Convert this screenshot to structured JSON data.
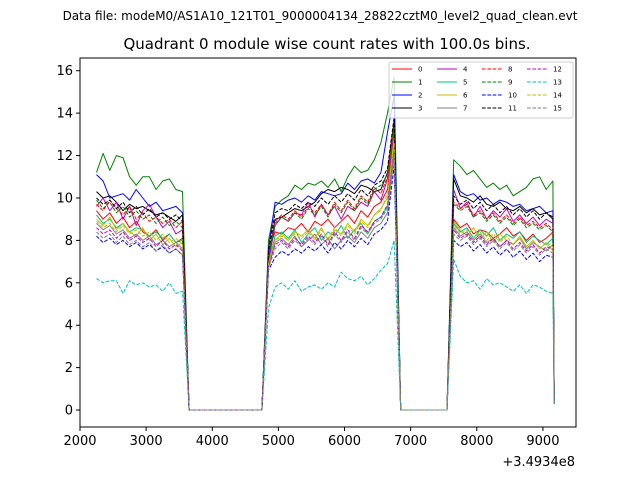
{
  "chart_data": {
    "type": "line",
    "suptitle": "Data file: modeM0/AS1A10_121T01_9000004134_28822cztM0_level2_quad_clean.evt",
    "title": "Quadrant 0 module wise count rates with 100.0s bins.",
    "xlabel": "",
    "ylabel": "",
    "x_offset_label": "+3.4934e8",
    "xlim": [
      2000,
      9500
    ],
    "ylim": [
      -0.8,
      16.6
    ],
    "xticks": [
      2000,
      3000,
      4000,
      5000,
      6000,
      7000,
      8000,
      9000
    ],
    "xtick_labels": [
      "2000",
      "3000",
      "4000",
      "5000",
      "6000",
      "7000",
      "8000",
      "9000"
    ],
    "yticks": [
      0,
      2,
      4,
      6,
      8,
      10,
      12,
      14,
      16
    ],
    "ytick_labels": [
      "0",
      "2",
      "4",
      "6",
      "8",
      "10",
      "12",
      "14",
      "16"
    ],
    "legend_location": "upper right",
    "gaps": [
      {
        "x_start": 3650,
        "x_end": 4750,
        "value": 0
      },
      {
        "x_start": 6850,
        "x_end": 7550,
        "value": 0
      }
    ],
    "segments": [
      {
        "start": 2250,
        "end": 3550,
        "points": 14,
        "drop_to": 3650
      },
      {
        "start": 4850,
        "end": 6750,
        "points": 20,
        "rise_from": 4750,
        "drop_to": 6850
      },
      {
        "start": 7650,
        "end": 9150,
        "points": 16,
        "rise_from": 7550,
        "final_x": 9170
      }
    ],
    "series": [
      {
        "name": "0",
        "color": "#ff0000",
        "dash": "solid",
        "values": [
          9.4,
          9.0,
          9.3,
          8.8,
          9.1,
          8.6,
          8.9,
          8.4,
          8.2,
          8.5,
          8.0,
          8.3,
          7.9,
          8.1,
          7.5,
          8.4,
          8.3,
          8.6,
          8.5,
          8.8,
          8.4,
          8.9,
          8.7,
          9.0,
          8.6,
          8.9,
          9.2,
          8.8,
          9.4,
          9.1,
          9.6,
          9.8,
          10.4,
          13.2,
          9.0,
          8.6,
          8.8,
          8.3,
          8.5,
          8.4,
          8.1,
          8.3,
          8.6,
          8.2,
          8.4,
          8.0,
          8.3,
          7.9,
          8.1,
          8.4,
          0.4
        ]
      },
      {
        "name": "1",
        "color": "#008000",
        "dash": "solid",
        "values": [
          11.2,
          12.1,
          11.3,
          12.0,
          11.9,
          11.0,
          10.6,
          11.0,
          11.0,
          10.4,
          10.8,
          10.9,
          10.4,
          10.3,
          8.0,
          9.6,
          9.9,
          10.1,
          10.6,
          10.4,
          10.7,
          10.6,
          10.8,
          10.5,
          10.9,
          10.3,
          11.0,
          11.5,
          11.2,
          11.3,
          11.8,
          12.6,
          14.0,
          15.7,
          11.8,
          11.5,
          11.1,
          11.3,
          10.9,
          10.5,
          10.7,
          10.4,
          10.6,
          10.1,
          10.3,
          10.5,
          10.9,
          11.0,
          10.4,
          10.8,
          0.5
        ]
      },
      {
        "name": "2",
        "color": "#0000ff",
        "dash": "solid",
        "values": [
          11.1,
          10.8,
          10.0,
          10.1,
          10.2,
          9.9,
          10.4,
          10.0,
          9.6,
          9.8,
          9.4,
          9.5,
          9.6,
          9.3,
          7.6,
          9.8,
          9.7,
          9.9,
          10.0,
          9.8,
          10.1,
          9.9,
          10.3,
          10.2,
          10.1,
          10.2,
          10.7,
          10.4,
          10.8,
          10.9,
          10.7,
          11.2,
          13.1,
          14.8,
          11.1,
          10.3,
          10.1,
          10.2,
          9.9,
          10.0,
          9.7,
          9.9,
          9.8,
          9.6,
          9.7,
          9.4,
          9.5,
          9.6,
          9.3,
          9.4,
          0.4
        ]
      },
      {
        "name": "3",
        "color": "#000000",
        "dash": "solid",
        "values": [
          10.3,
          10.0,
          10.1,
          9.8,
          9.4,
          9.7,
          9.5,
          9.6,
          9.4,
          9.2,
          9.3,
          9.1,
          8.9,
          9.2,
          7.2,
          9.0,
          9.1,
          9.3,
          9.5,
          9.4,
          9.6,
          9.8,
          10.2,
          10.4,
          10.3,
          10.5,
          10.4,
          10.2,
          10.6,
          10.5,
          10.3,
          10.4,
          11.2,
          13.6,
          10.9,
          10.1,
          10.0,
          9.8,
          10.1,
          9.7,
          9.6,
          9.8,
          9.5,
          9.4,
          9.6,
          9.3,
          9.5,
          9.2,
          9.3,
          9.0,
          0.4
        ]
      },
      {
        "name": "4",
        "color": "#bf00bf",
        "dash": "solid",
        "values": [
          9.6,
          10.0,
          9.4,
          9.8,
          9.0,
          9.6,
          8.7,
          9.4,
          9.7,
          9.1,
          8.6,
          8.9,
          8.3,
          8.5,
          7.0,
          8.7,
          9.1,
          8.9,
          9.3,
          9.2,
          9.8,
          9.1,
          9.7,
          9.2,
          9.6,
          9.0,
          9.6,
          9.4,
          9.8,
          9.6,
          10.3,
          9.9,
          10.9,
          13.0,
          10.4,
          9.5,
          9.8,
          9.1,
          9.6,
          9.0,
          9.4,
          9.1,
          9.5,
          8.9,
          9.2,
          8.8,
          9.1,
          8.7,
          9.0,
          8.8,
          0.3
        ]
      },
      {
        "name": "5",
        "color": "#00c080",
        "dash": "solid",
        "values": [
          9.2,
          8.8,
          9.0,
          8.6,
          8.8,
          8.4,
          8.6,
          8.5,
          8.2,
          8.4,
          8.1,
          8.3,
          7.9,
          8.0,
          6.9,
          8.2,
          8.4,
          8.1,
          8.5,
          7.9,
          8.3,
          8.6,
          8.0,
          8.4,
          8.2,
          8.7,
          8.1,
          8.5,
          8.8,
          8.3,
          8.9,
          9.1,
          9.6,
          12.5,
          8.8,
          8.4,
          8.6,
          8.1,
          8.5,
          8.2,
          8.6,
          8.0,
          8.3,
          8.1,
          8.4,
          7.9,
          8.2,
          8.0,
          7.8,
          8.1,
          0.3
        ]
      },
      {
        "name": "6",
        "color": "#bfbf00",
        "dash": "solid",
        "values": [
          9.0,
          8.7,
          9.1,
          8.5,
          8.8,
          8.4,
          8.2,
          8.6,
          8.0,
          8.3,
          7.8,
          8.1,
          7.7,
          7.9,
          6.8,
          8.0,
          8.3,
          8.0,
          8.4,
          8.2,
          8.5,
          8.1,
          8.6,
          8.0,
          8.5,
          8.3,
          8.8,
          8.4,
          9.0,
          8.7,
          9.2,
          9.5,
          10.0,
          12.8,
          8.9,
          8.5,
          8.2,
          8.6,
          8.1,
          8.4,
          7.9,
          8.3,
          8.0,
          7.8,
          8.2,
          7.7,
          8.0,
          7.6,
          7.9,
          7.5,
          0.3
        ]
      },
      {
        "name": "7",
        "color": "#808080",
        "dash": "solid",
        "values": [
          8.8,
          8.5,
          8.7,
          8.3,
          8.5,
          8.1,
          8.3,
          8.0,
          8.2,
          7.8,
          8.0,
          7.7,
          7.9,
          7.6,
          6.7,
          7.9,
          8.1,
          7.8,
          8.2,
          7.7,
          8.0,
          8.3,
          7.8,
          8.1,
          7.6,
          8.0,
          8.2,
          7.9,
          8.4,
          8.1,
          8.6,
          8.8,
          9.3,
          12.0,
          8.6,
          8.2,
          8.4,
          8.0,
          8.3,
          7.9,
          8.1,
          7.7,
          8.0,
          7.8,
          8.1,
          7.6,
          7.9,
          7.7,
          7.5,
          7.8,
          0.3
        ]
      },
      {
        "name": "8",
        "color": "#ff0000",
        "dash": "dashed",
        "values": [
          9.7,
          9.4,
          9.9,
          9.5,
          9.2,
          9.6,
          9.0,
          9.3,
          8.9,
          9.1,
          8.8,
          9.0,
          8.6,
          8.9,
          7.3,
          8.9,
          9.2,
          9.0,
          9.4,
          9.1,
          9.6,
          9.3,
          9.7,
          9.2,
          9.8,
          9.4,
          9.9,
          9.5,
          10.1,
          9.8,
          10.5,
          10.2,
          11.0,
          13.4,
          9.8,
          9.5,
          9.7,
          9.2,
          9.4,
          9.0,
          9.3,
          8.9,
          9.2,
          8.8,
          9.1,
          8.7,
          8.9,
          8.6,
          8.8,
          8.5,
          0.4
        ]
      },
      {
        "name": "9",
        "color": "#008000",
        "dash": "dashed",
        "values": [
          9.9,
          9.5,
          9.8,
          9.3,
          9.6,
          9.1,
          9.4,
          9.0,
          9.2,
          8.8,
          9.1,
          8.7,
          8.9,
          8.6,
          7.2,
          8.8,
          9.1,
          8.9,
          9.3,
          9.0,
          9.5,
          9.2,
          9.6,
          9.1,
          9.7,
          9.3,
          9.8,
          9.4,
          10.0,
          9.7,
          10.4,
          10.6,
          11.1,
          13.5,
          9.7,
          9.4,
          9.6,
          9.1,
          9.3,
          8.9,
          9.2,
          8.8,
          9.1,
          8.7,
          9.0,
          8.6,
          8.8,
          8.5,
          8.7,
          8.4,
          0.4
        ]
      },
      {
        "name": "10",
        "color": "#0000ff",
        "dash": "dashed",
        "values": [
          8.2,
          7.9,
          8.1,
          7.8,
          8.0,
          7.7,
          7.9,
          7.6,
          7.8,
          7.5,
          7.7,
          7.4,
          7.6,
          7.3,
          6.6,
          7.2,
          7.5,
          7.3,
          7.6,
          7.4,
          7.7,
          7.5,
          7.8,
          7.4,
          7.9,
          7.6,
          8.0,
          7.7,
          8.1,
          7.8,
          8.3,
          8.5,
          8.9,
          11.5,
          8.0,
          7.7,
          7.9,
          7.5,
          7.8,
          7.4,
          7.7,
          7.3,
          7.6,
          7.2,
          7.5,
          7.1,
          7.4,
          7.0,
          7.3,
          7.2,
          0.3
        ]
      },
      {
        "name": "11",
        "color": "#000000",
        "dash": "dashed",
        "values": [
          10.0,
          9.7,
          9.9,
          9.5,
          9.8,
          9.3,
          9.6,
          9.2,
          9.5,
          9.1,
          9.3,
          9.0,
          9.2,
          8.9,
          7.5,
          9.3,
          9.5,
          9.4,
          9.7,
          9.5,
          9.8,
          9.6,
          10.0,
          9.7,
          10.1,
          9.8,
          10.2,
          9.9,
          10.4,
          10.1,
          10.6,
          10.8,
          11.4,
          13.8,
          10.1,
          9.7,
          9.9,
          9.5,
          9.8,
          9.4,
          9.7,
          9.3,
          9.6,
          9.2,
          9.5,
          9.1,
          9.4,
          9.0,
          9.3,
          9.1,
          0.4
        ]
      },
      {
        "name": "12",
        "color": "#bf00bf",
        "dash": "dashed",
        "values": [
          8.6,
          8.3,
          8.5,
          8.1,
          8.4,
          8.0,
          8.2,
          7.9,
          8.1,
          7.7,
          8.0,
          7.6,
          7.8,
          7.5,
          6.8,
          7.8,
          8.0,
          7.7,
          8.1,
          7.8,
          8.2,
          7.9,
          8.3,
          7.8,
          8.4,
          8.0,
          8.5,
          8.1,
          8.7,
          8.4,
          8.9,
          9.1,
          9.7,
          12.2,
          8.5,
          8.1,
          8.3,
          7.9,
          8.2,
          7.8,
          8.1,
          7.7,
          8.0,
          7.6,
          7.9,
          7.5,
          7.8,
          7.4,
          7.7,
          7.6,
          0.3
        ]
      },
      {
        "name": "13",
        "color": "#00bfbf",
        "dash": "dashed",
        "values": [
          6.2,
          6.0,
          6.1,
          6.1,
          5.5,
          6.1,
          5.9,
          6.0,
          5.8,
          5.9,
          5.6,
          6.0,
          5.5,
          5.6,
          4.8,
          5.8,
          6.0,
          5.7,
          6.1,
          5.6,
          5.8,
          5.9,
          5.7,
          6.0,
          5.8,
          6.5,
          6.2,
          6.1,
          6.3,
          5.9,
          6.2,
          6.6,
          6.9,
          8.0,
          7.1,
          6.3,
          6.0,
          6.1,
          5.7,
          6.2,
          5.9,
          6.0,
          5.8,
          5.6,
          5.9,
          5.5,
          5.9,
          5.8,
          5.6,
          5.5,
          0.2
        ]
      },
      {
        "name": "14",
        "color": "#bfbf00",
        "dash": "dashed",
        "values": [
          8.9,
          8.6,
          8.8,
          8.4,
          8.7,
          8.3,
          8.5,
          8.2,
          8.4,
          8.0,
          8.3,
          7.9,
          8.1,
          7.8,
          6.9,
          8.0,
          8.2,
          8.0,
          8.3,
          8.1,
          8.4,
          8.0,
          8.5,
          8.1,
          8.6,
          8.2,
          8.7,
          8.3,
          8.9,
          8.6,
          9.2,
          9.4,
          10.2,
          12.6,
          8.7,
          8.3,
          8.5,
          8.1,
          8.4,
          8.0,
          8.3,
          7.9,
          8.2,
          7.8,
          8.1,
          7.7,
          8.0,
          7.6,
          7.9,
          7.7,
          0.3
        ]
      },
      {
        "name": "15",
        "color": "#808080",
        "dash": "dashed",
        "values": [
          8.4,
          8.1,
          8.3,
          7.9,
          8.2,
          7.8,
          8.0,
          7.7,
          7.9,
          7.5,
          7.8,
          7.4,
          7.6,
          7.3,
          6.7,
          7.6,
          7.9,
          7.6,
          8.0,
          7.7,
          8.1,
          7.8,
          8.2,
          7.7,
          8.3,
          7.9,
          8.4,
          8.0,
          8.6,
          8.3,
          8.8,
          9.0,
          9.5,
          12.1,
          8.3,
          8.0,
          8.2,
          7.8,
          8.1,
          7.7,
          8.0,
          7.6,
          7.9,
          7.5,
          7.8,
          7.4,
          7.7,
          7.3,
          7.6,
          7.4,
          0.3
        ]
      }
    ]
  }
}
